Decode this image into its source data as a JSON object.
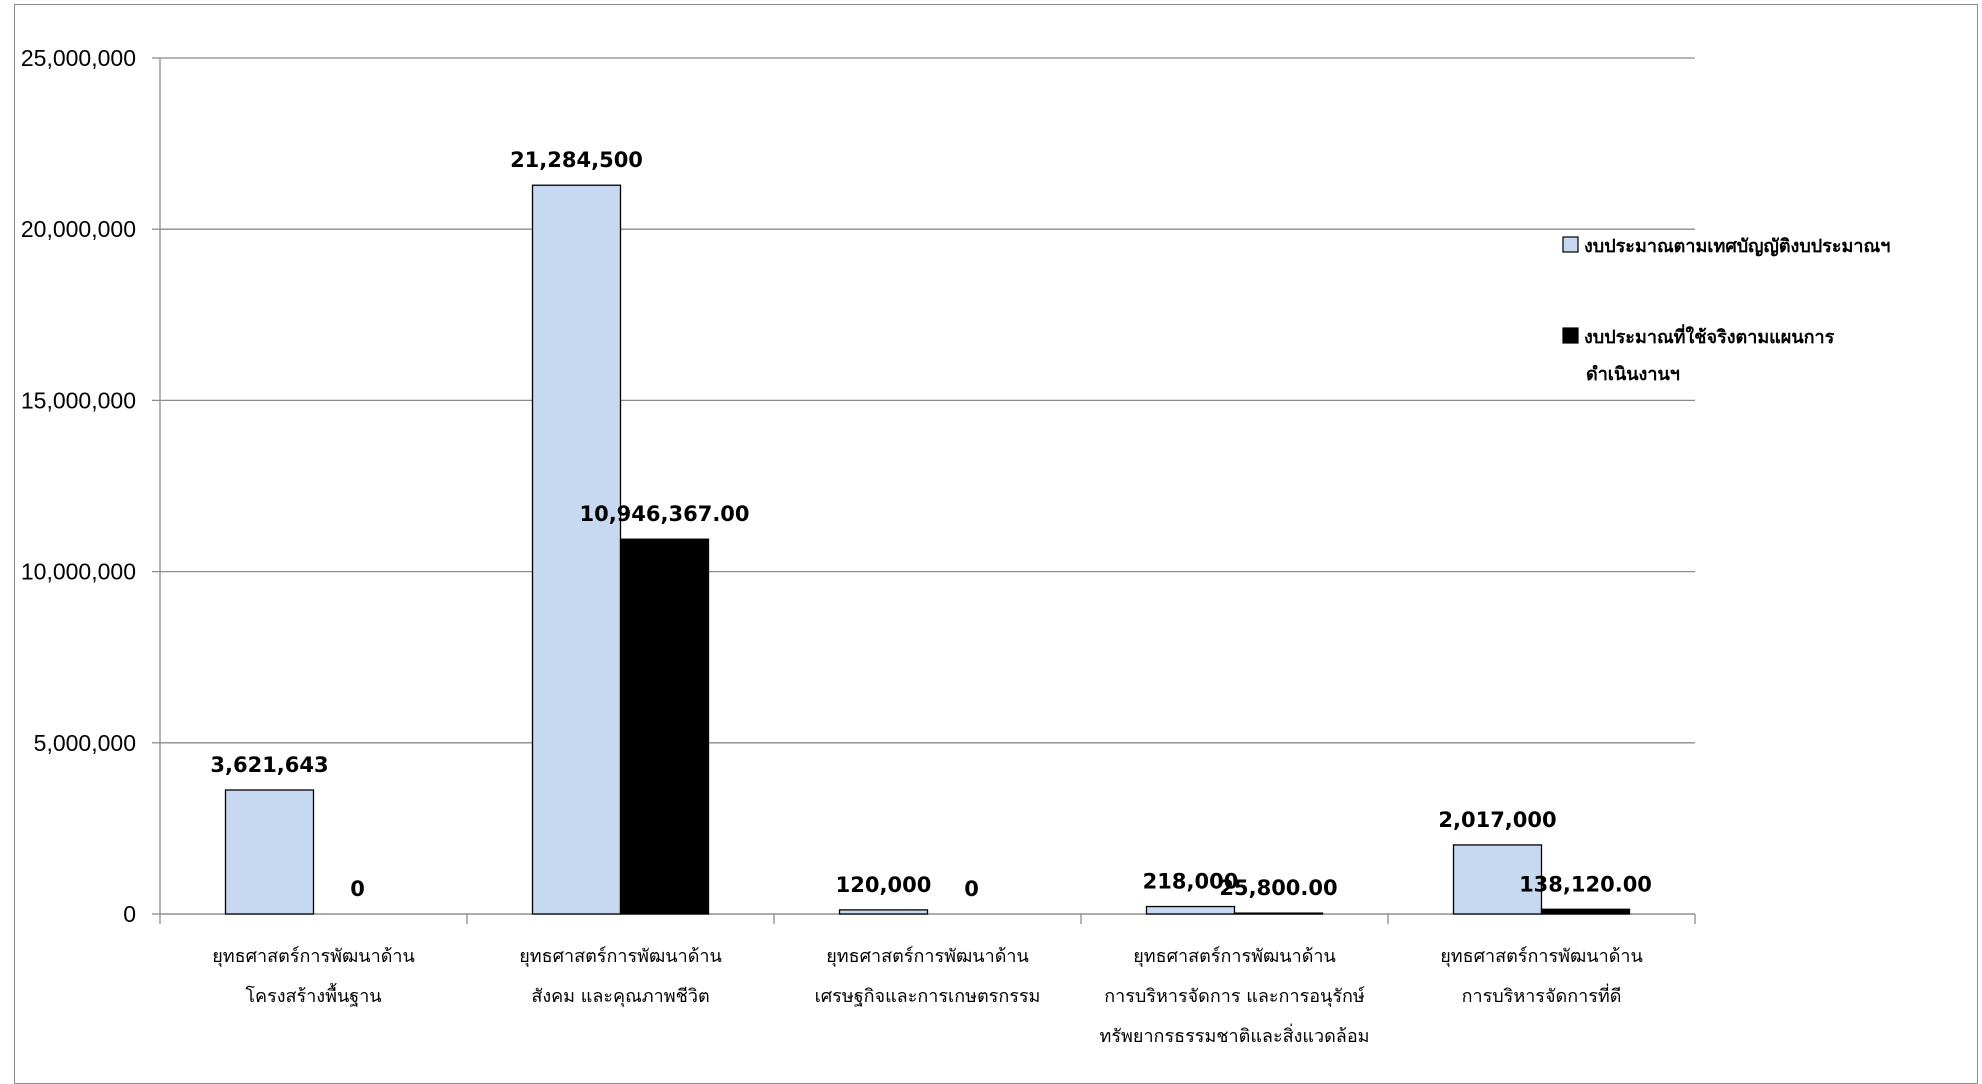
{
  "chart_data": {
    "type": "bar",
    "categories": [
      [
        "ยุทธศาสตร์การพัฒนาด้าน",
        "โครงสร้างพื้นฐาน"
      ],
      [
        "ยุทธศาสตร์การพัฒนาด้าน",
        "สังคม  และคุณภาพชีวิต"
      ],
      [
        "ยุทธศาสตร์การพัฒนาด้าน",
        "เศรษฐกิจและการเกษตรกรรม"
      ],
      [
        "ยุทธศาสตร์การพัฒนาด้าน",
        "การบริหารจัดการ และการอนุรักษ์",
        "ทรัพยากรธรรมชาติและสิ่งแวดล้อม"
      ],
      [
        "ยุทธศาสตร์การพัฒนาด้าน",
        "การบริหารจัดการที่ดี"
      ]
    ],
    "series": [
      {
        "name": "งบประมาณตามเทศบัญญัติงบประมาณฯ",
        "color": "#c6d9f1",
        "values": [
          3621643,
          21284500,
          120000,
          218000,
          2017000
        ],
        "labels": [
          "3,621,643",
          "21,284,500",
          "120,000",
          "218,000",
          "2,017,000"
        ]
      },
      {
        "name": "งบประมาณที่ใช้จริงตามแผนการดำเนินงานฯ",
        "name_lines": [
          "งบประมาณที่ใช้จริงตามแผนการ",
          "ดำเนินงานฯ"
        ],
        "color": "#000000",
        "values": [
          0,
          10946367,
          0,
          25800,
          138120
        ],
        "labels": [
          "0",
          "10,946,367.00",
          "0",
          "25,800.00",
          "138,120.00"
        ]
      }
    ],
    "ylim": [
      0,
      25000000
    ],
    "yticks": [
      0,
      5000000,
      10000000,
      15000000,
      20000000,
      25000000
    ],
    "ytick_labels": [
      "0",
      "5,000,000",
      "10,000,000",
      "15,000,000",
      "20,000,000",
      "25,000,000"
    ],
    "grid": true,
    "legend_position": "right"
  }
}
